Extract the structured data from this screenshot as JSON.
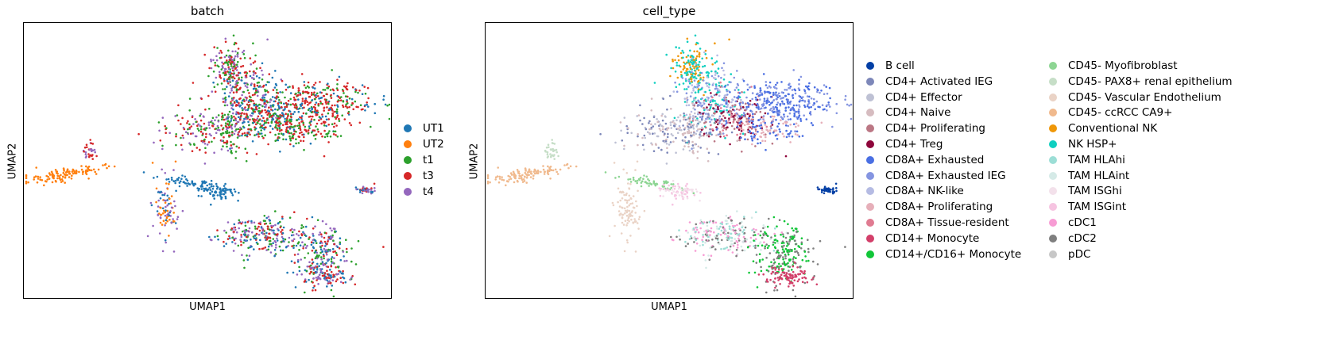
{
  "chart_data": [
    {
      "type": "scatter",
      "title": "batch",
      "xlabel": "UMAP1",
      "ylabel": "UMAP2",
      "xticks": "none",
      "yticks": "none",
      "legend_placement": "right",
      "series": [
        {
          "name": "UT1",
          "color": "#1f77b4"
        },
        {
          "name": "UT2",
          "color": "#ff7f0e"
        },
        {
          "name": "t1",
          "color": "#2ca02c"
        },
        {
          "name": "t3",
          "color": "#d62728"
        },
        {
          "name": "t4",
          "color": "#9467bd"
        }
      ]
    },
    {
      "type": "scatter",
      "title": "cell_type",
      "xlabel": "UMAP1",
      "ylabel": "UMAP2",
      "xticks": "none",
      "yticks": "none",
      "legend_placement": "right",
      "legend_columns": 2,
      "series": [
        {
          "name": "B cell",
          "color": "#023fa5"
        },
        {
          "name": "CD4+ Activated IEG",
          "color": "#7d87b9"
        },
        {
          "name": "CD4+ Effector",
          "color": "#bec1d4"
        },
        {
          "name": "CD4+ Naive",
          "color": "#d6bcc0"
        },
        {
          "name": "CD4+ Proliferating",
          "color": "#bb7784"
        },
        {
          "name": "CD4+ Treg",
          "color": "#8e063b"
        },
        {
          "name": "CD8A+ Exhausted",
          "color": "#4a6fe3"
        },
        {
          "name": "CD8A+ Exhausted IEG",
          "color": "#8595e1"
        },
        {
          "name": "CD8A+ NK-like",
          "color": "#b5bbe3"
        },
        {
          "name": "CD8A+ Proliferating",
          "color": "#e6afb9"
        },
        {
          "name": "CD8A+ Tissue-resident",
          "color": "#e07b91"
        },
        {
          "name": "CD14+ Monocyte",
          "color": "#d33f6a"
        },
        {
          "name": "CD14+/CD16+ Monocyte",
          "color": "#11c638"
        },
        {
          "name": "CD45- Myofibroblast",
          "color": "#8dd593"
        },
        {
          "name": "CD45- PAX8+ renal epithelium",
          "color": "#c6dec7"
        },
        {
          "name": "CD45- Vascular Endothelium",
          "color": "#ead3c6"
        },
        {
          "name": "CD45- ccRCC CA9+",
          "color": "#f0b98d"
        },
        {
          "name": "Conventional NK",
          "color": "#ef9708"
        },
        {
          "name": "NK HSP+",
          "color": "#0fcfc0"
        },
        {
          "name": "TAM HLAhi",
          "color": "#9cded6"
        },
        {
          "name": "TAM HLAint",
          "color": "#d5eae7"
        },
        {
          "name": "TAM ISGhi",
          "color": "#f3e1eb"
        },
        {
          "name": "TAM ISGint",
          "color": "#f6c4e1"
        },
        {
          "name": "cDC1",
          "color": "#f79cd4"
        },
        {
          "name": "cDC2",
          "color": "#7f7f7f"
        },
        {
          "name": "pDC",
          "color": "#c7c7c7"
        }
      ]
    }
  ]
}
